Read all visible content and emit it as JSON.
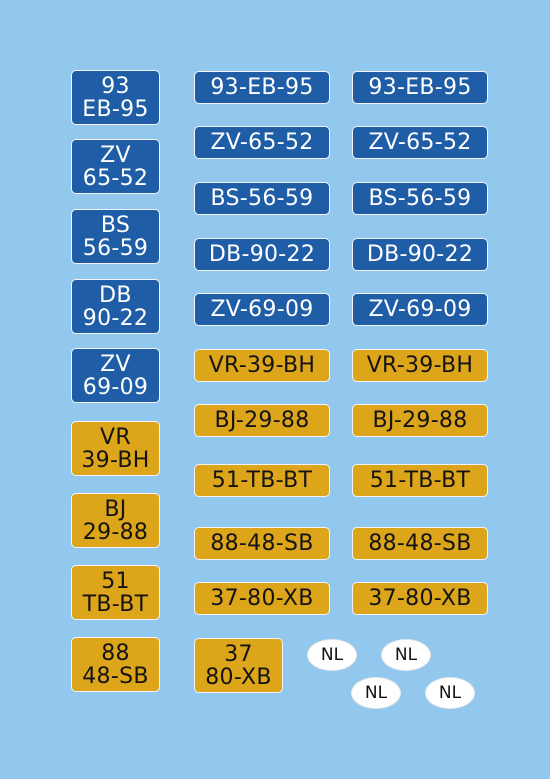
{
  "colors": {
    "background": "#92c8ee",
    "blue_plate": "#1f5ea7",
    "yellow_plate": "#dca51a"
  },
  "square_plates": [
    {
      "line1": "93",
      "line2": "EB-95",
      "color": "blue"
    },
    {
      "line1": "ZV",
      "line2": "65-52",
      "color": "blue"
    },
    {
      "line1": "BS",
      "line2": "56-59",
      "color": "blue"
    },
    {
      "line1": "DB",
      "line2": "90-22",
      "color": "blue"
    },
    {
      "line1": "ZV",
      "line2": "69-09",
      "color": "blue"
    },
    {
      "line1": "VR",
      "line2": "39-BH",
      "color": "yellow"
    },
    {
      "line1": "BJ",
      "line2": "29-88",
      "color": "yellow"
    },
    {
      "line1": "51",
      "line2": "TB-BT",
      "color": "yellow"
    },
    {
      "line1": "88",
      "line2": "48-SB",
      "color": "yellow"
    },
    {
      "line1": "37",
      "line2": "80-XB",
      "color": "yellow"
    }
  ],
  "long_plates": [
    {
      "text": "93-EB-95",
      "color": "blue"
    },
    {
      "text": "ZV-65-52",
      "color": "blue"
    },
    {
      "text": "BS-56-59",
      "color": "blue"
    },
    {
      "text": "DB-90-22",
      "color": "blue"
    },
    {
      "text": "ZV-69-09",
      "color": "blue"
    },
    {
      "text": "VR-39-BH",
      "color": "yellow"
    },
    {
      "text": "BJ-29-88",
      "color": "yellow"
    },
    {
      "text": "51-TB-BT",
      "color": "yellow"
    },
    {
      "text": "88-48-SB",
      "color": "yellow"
    },
    {
      "text": "37-80-XB",
      "color": "yellow"
    }
  ],
  "country_stickers": [
    "NL",
    "NL",
    "NL",
    "NL"
  ]
}
